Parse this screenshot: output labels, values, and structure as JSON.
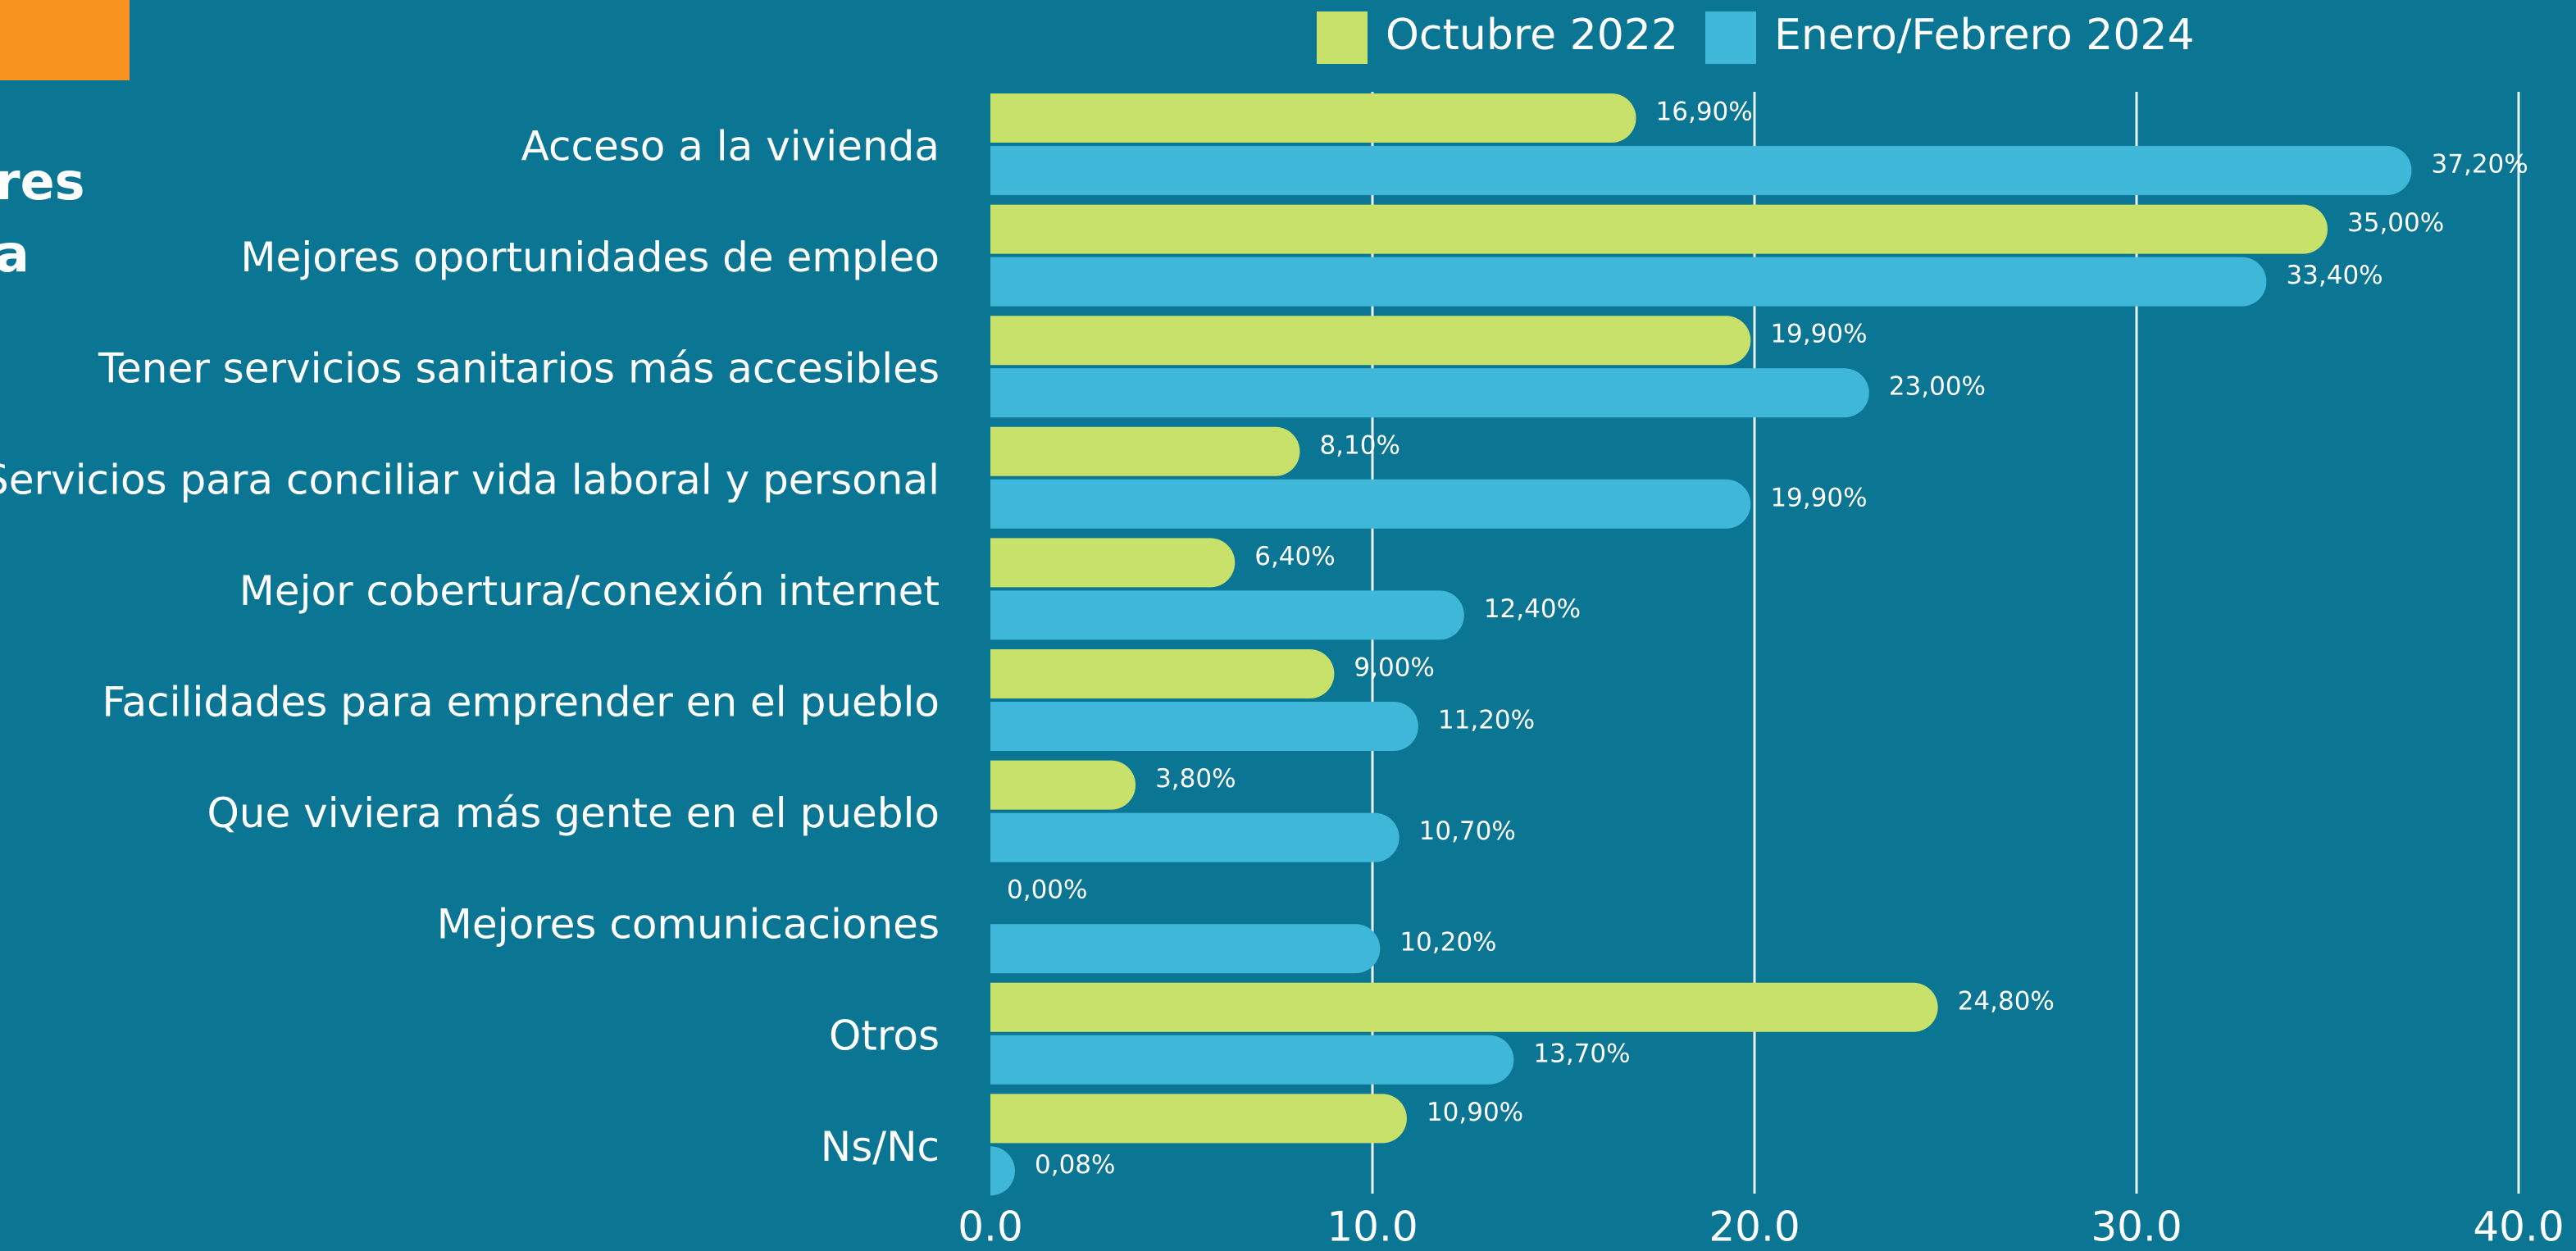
{
  "chart_data": {
    "type": "hbar",
    "title_fragments": [
      "res",
      "a"
    ],
    "categories": [
      "Acceso a la vivienda",
      "Mejores oportunidades de empleo",
      "Tener servicios sanitarios más accesibles",
      "Servicios para conciliar vida laboral y personal",
      "Mejor cobertura/conexión internet",
      "Facilidades para emprender en el pueblo",
      "Que viviera más gente en el pueblo",
      "Mejores comunicaciones",
      "Otros",
      "Ns/Nc"
    ],
    "series": [
      {
        "name": "Octubre 2022",
        "color": "#c8e16b",
        "values": [
          16.9,
          35.0,
          19.9,
          8.1,
          6.4,
          9.0,
          3.8,
          0.0,
          24.8,
          10.9
        ],
        "value_labels": [
          "16,90%",
          "35,00%",
          "19,90%",
          "8,10%",
          "6,40%",
          "9,00%",
          "3,80%",
          "0,00%",
          "24,80%",
          "10,90%"
        ]
      },
      {
        "name": "Enero/Febrero 2024",
        "color": "#3fb7d8",
        "values": [
          37.2,
          33.4,
          23.0,
          19.9,
          12.4,
          11.2,
          10.7,
          10.2,
          13.7,
          0.08
        ],
        "value_labels": [
          "37,20%",
          "33,40%",
          "23,00%",
          "19,90%",
          "12,40%",
          "11,20%",
          "10,70%",
          "10,20%",
          "13,70%",
          "0,08%"
        ]
      }
    ],
    "xlim": [
      0,
      40
    ],
    "xticks": [
      {
        "value": 0,
        "label": "0.0"
      },
      {
        "value": 10,
        "label": "10.0"
      },
      {
        "value": 20,
        "label": "20.0"
      },
      {
        "value": 30,
        "label": "30.0"
      },
      {
        "value": 40,
        "label": "40.0"
      }
    ],
    "grid": true,
    "legend": "top"
  }
}
